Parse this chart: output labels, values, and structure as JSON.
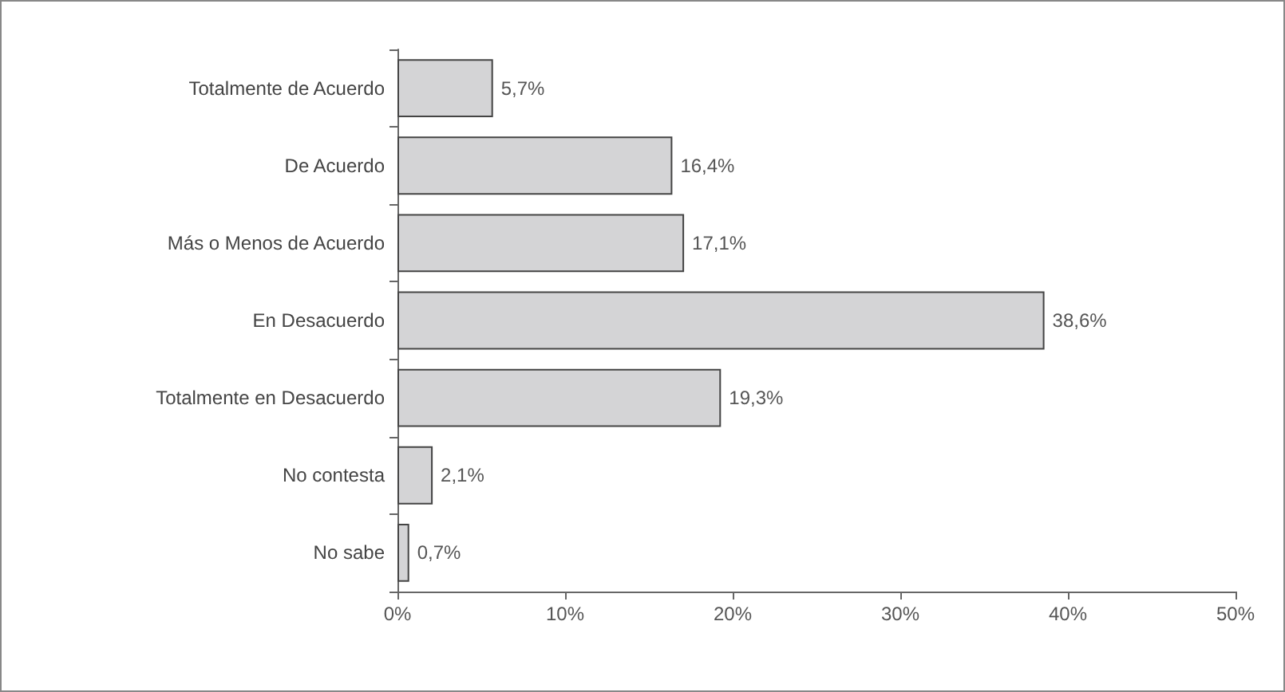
{
  "chart_data": {
    "type": "bar",
    "orientation": "horizontal",
    "categories": [
      "Totalmente de Acuerdo",
      "De Acuerdo",
      "Más o Menos de Acuerdo",
      "En Desacuerdo",
      "Totalmente en Desacuerdo",
      "No contesta",
      "No sabe"
    ],
    "values": [
      5.7,
      16.4,
      17.1,
      38.6,
      19.3,
      2.1,
      0.7
    ],
    "value_labels": [
      "5,7%",
      "16,4%",
      "17,1%",
      "38,6%",
      "19,3%",
      "2,1%",
      "0,7%"
    ],
    "color": "#d4d4d6",
    "xlim": [
      0,
      50
    ],
    "xticks": [
      {
        "value": 0,
        "label": "0%"
      },
      {
        "value": 10,
        "label": "10%"
      },
      {
        "value": 20,
        "label": "20%"
      },
      {
        "value": 30,
        "label": "30%"
      },
      {
        "value": 40,
        "label": "40%"
      },
      {
        "value": 50,
        "label": "50%"
      }
    ],
    "grid": false
  }
}
